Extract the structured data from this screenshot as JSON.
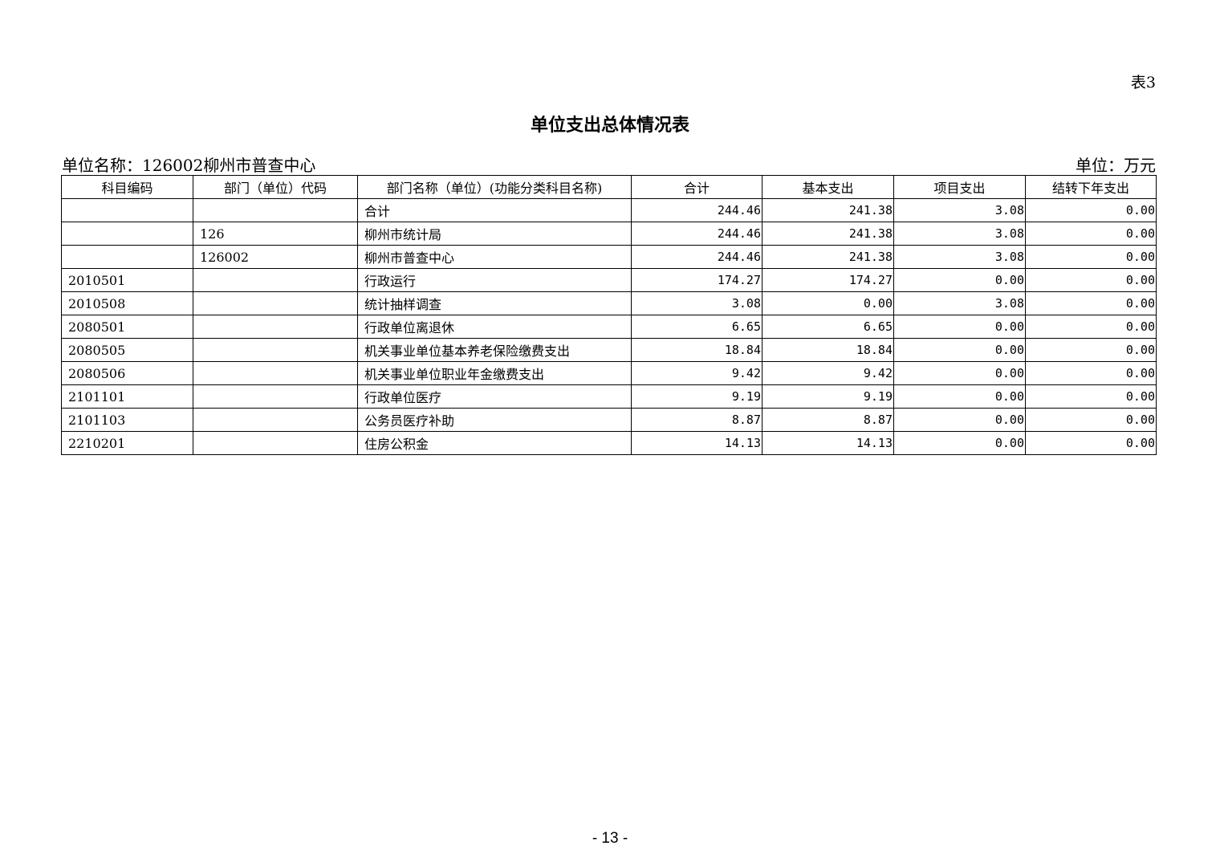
{
  "table_no": "表3",
  "title": "单位支出总体情况表",
  "unit_name": "单位名称：126002柳州市普查中心",
  "unit": "单位：万元",
  "columns": [
    "科目编码",
    "部门（单位）代码",
    "部门名称（单位）(功能分类科目名称)",
    "合计",
    "基本支出",
    "项目支出",
    "结转下年支出"
  ],
  "rows": [
    [
      "",
      "",
      "合计",
      "244.46",
      "241.38",
      "3.08",
      "0.00"
    ],
    [
      "",
      "126",
      "柳州市统计局",
      "244.46",
      "241.38",
      "3.08",
      "0.00"
    ],
    [
      "",
      "126002",
      "柳州市普查中心",
      "244.46",
      "241.38",
      "3.08",
      "0.00"
    ],
    [
      "2010501",
      "",
      "行政运行",
      "174.27",
      "174.27",
      "0.00",
      "0.00"
    ],
    [
      "2010508",
      "",
      "统计抽样调查",
      "3.08",
      "0.00",
      "3.08",
      "0.00"
    ],
    [
      "2080501",
      "",
      "行政单位离退休",
      "6.65",
      "6.65",
      "0.00",
      "0.00"
    ],
    [
      "2080505",
      "",
      "机关事业单位基本养老保险缴费支出",
      "18.84",
      "18.84",
      "0.00",
      "0.00"
    ],
    [
      "2080506",
      "",
      "机关事业单位职业年金缴费支出",
      "9.42",
      "9.42",
      "0.00",
      "0.00"
    ],
    [
      "2101101",
      "",
      "行政单位医疗",
      "9.19",
      "9.19",
      "0.00",
      "0.00"
    ],
    [
      "2101103",
      "",
      "公务员医疗补助",
      "8.87",
      "8.87",
      "0.00",
      "0.00"
    ],
    [
      "2210201",
      "",
      "住房公积金",
      "14.13",
      "14.13",
      "0.00",
      "0.00"
    ]
  ],
  "page_number": "- 13 -"
}
